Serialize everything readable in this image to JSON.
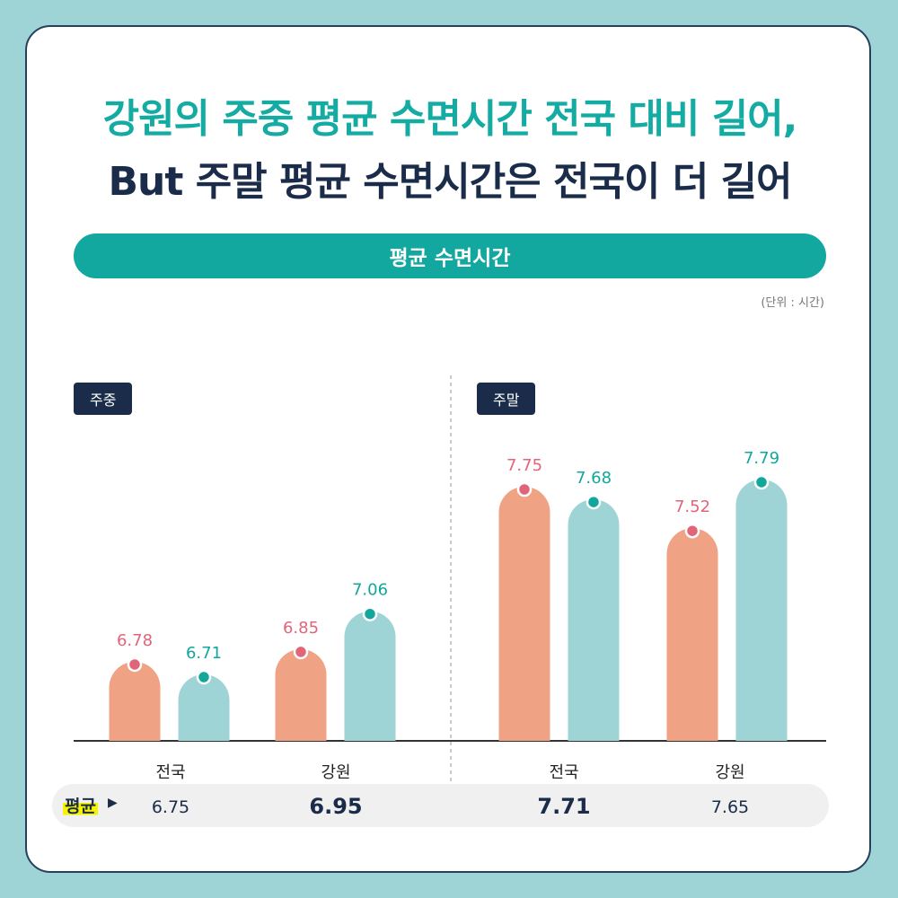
{
  "header": {
    "title_line1": "강원의 주중 평균 수면시간 전국 대비 길어,",
    "title_line2": "But 주말 평균 수면시간은 전국이 더 길어"
  },
  "section_title": "평균 수면시간",
  "unit_note": "(단위 : 시간)",
  "average_label": "평균",
  "colors": {
    "national": "#f0a284",
    "national_dot": "#e16579",
    "gangwon": "#9fd4d6",
    "gangwon_dot": "#11a79d",
    "navy": "#1b2c4a"
  },
  "chart_data": [
    {
      "type": "bar",
      "panel": "주중",
      "categories": [
        "전국",
        "강원"
      ],
      "series": [
        {
          "values": [
            6.78,
            6.85
          ]
        },
        {
          "values": [
            6.71,
            7.06
          ]
        }
      ],
      "averages": [
        "6.75",
        "6.95"
      ]
    },
    {
      "type": "bar",
      "panel": "주말",
      "categories": [
        "전국",
        "강원"
      ],
      "series": [
        {
          "values": [
            7.75,
            7.52
          ]
        },
        {
          "values": [
            7.68,
            7.79
          ]
        }
      ],
      "averages": [
        "7.71",
        "7.65"
      ]
    }
  ]
}
